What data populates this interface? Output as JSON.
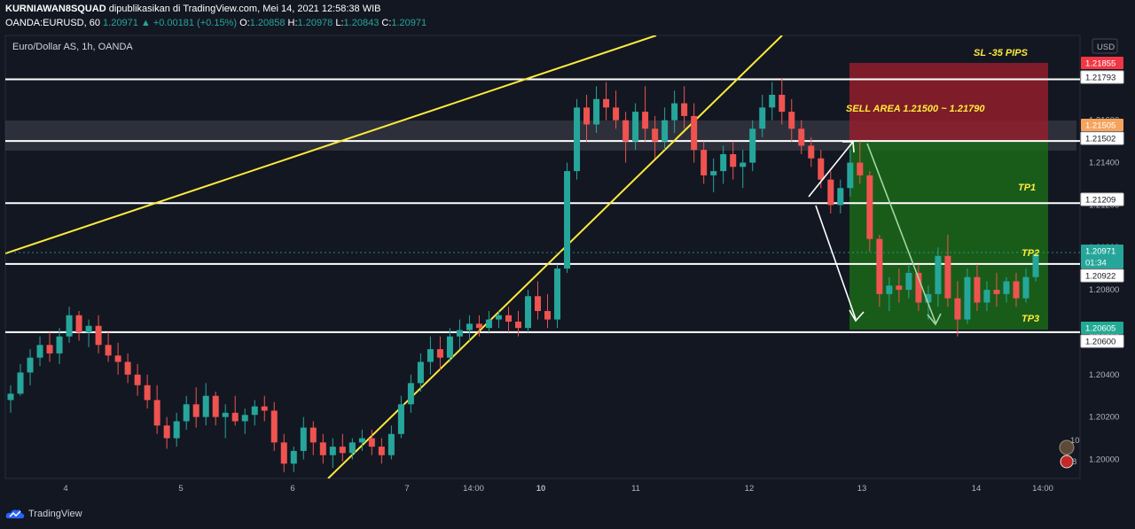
{
  "header": {
    "user": "KURNIAWAN8SQUAD",
    "published": "dipublikasikan di TradingView.com, Mei 14, 2021 12:58:38 WIB",
    "symbol": "OANDA:EURUSD, 60",
    "price": "1.20971",
    "change": "▲ +0.00181 (+0.15%)",
    "o_label": "O:",
    "o": "1.20858",
    "h_label": "H:",
    "h": "1.20978",
    "l_label": "L:",
    "l": "1.20843",
    "c_label": "C:",
    "c": "1.20971"
  },
  "footer": {
    "brand": "TradingView"
  },
  "chart_data": {
    "type": "candlestick",
    "title": "Euro/Dollar AS, 1h, OANDA",
    "currency": "USD",
    "y_ticks": [
      "1.21600",
      "1.21400",
      "1.21200",
      "1.21000",
      "1.20800",
      "1.20600",
      "1.20400",
      "1.20200",
      "1.20000"
    ],
    "y_range": [
      1.1991,
      1.22
    ],
    "x_ticks": [
      "4",
      "5",
      "6",
      "7",
      "14:00",
      "10",
      "11",
      "12",
      "13",
      "14",
      "14:00"
    ],
    "horizontal_levels": [
      1.21793,
      1.21502,
      1.21209,
      1.20922,
      1.206
    ],
    "price_tags": [
      {
        "text": "1.21855",
        "color": "#f23645"
      },
      {
        "text": "1.21793",
        "color": "#ffffff"
      },
      {
        "text": "1.21505",
        "color": "#f7a35c"
      },
      {
        "text": "1.21502",
        "color": "#ffffff"
      },
      {
        "text": "1.21209",
        "color": "#ffffff"
      },
      {
        "text": "1.20971",
        "color": "#26a69a"
      },
      {
        "text": "01:34",
        "color": "#26a69a"
      },
      {
        "text": "1.20922",
        "color": "#ffffff"
      },
      {
        "text": "1.20605",
        "color": "#22ab94"
      },
      {
        "text": "1.20600",
        "color": "#ffffff"
      }
    ],
    "annotations": [
      "SL -35 PIPS",
      "SELL AREA 1.21500 ~ 1.21790",
      "TP1",
      "TP2",
      "TP3"
    ],
    "zones": {
      "stop_loss": [
        1.215,
        1.21855
      ],
      "take_profit": [
        1.20605,
        1.215
      ],
      "sell_band": [
        1.2145,
        1.2164
      ]
    },
    "candles": [
      [
        1.2028,
        1.2035,
        1.2022,
        1.2031
      ],
      [
        1.2031,
        1.2045,
        1.203,
        1.2041
      ],
      [
        1.2041,
        1.2052,
        1.2035,
        1.2048
      ],
      [
        1.2048,
        1.2058,
        1.2044,
        1.2054
      ],
      [
        1.2054,
        1.206,
        1.2046,
        1.205
      ],
      [
        1.205,
        1.2062,
        1.2045,
        1.2058
      ],
      [
        1.2058,
        1.2072,
        1.2055,
        1.2068
      ],
      [
        1.2068,
        1.207,
        1.2056,
        1.206
      ],
      [
        1.206,
        1.2066,
        1.2053,
        1.2063
      ],
      [
        1.2063,
        1.2068,
        1.205,
        1.2054
      ],
      [
        1.2054,
        1.206,
        1.2046,
        1.2049
      ],
      [
        1.2049,
        1.2055,
        1.204,
        1.2046
      ],
      [
        1.2046,
        1.205,
        1.2036,
        1.204
      ],
      [
        1.204,
        1.2045,
        1.203,
        1.2035
      ],
      [
        1.2035,
        1.204,
        1.2024,
        1.2028
      ],
      [
        1.2028,
        1.2035,
        1.2012,
        1.2016
      ],
      [
        1.2016,
        1.202,
        1.2005,
        1.201
      ],
      [
        1.201,
        1.2022,
        1.2006,
        1.2018
      ],
      [
        1.2018,
        1.203,
        1.2014,
        1.2026
      ],
      [
        1.2026,
        1.2034,
        1.2015,
        1.202
      ],
      [
        1.202,
        1.2036,
        1.2016,
        1.203
      ],
      [
        1.203,
        1.2032,
        1.2016,
        1.202
      ],
      [
        1.202,
        1.2026,
        1.201,
        1.2022
      ],
      [
        1.2022,
        1.203,
        1.2016,
        1.2018
      ],
      [
        1.2018,
        1.2024,
        1.2012,
        1.2021
      ],
      [
        1.2021,
        1.2028,
        1.2016,
        1.2025
      ],
      [
        1.2025,
        1.203,
        1.2018,
        1.2023
      ],
      [
        1.2023,
        1.2027,
        1.2004,
        1.2008
      ],
      [
        1.2008,
        1.2012,
        1.1994,
        1.1998
      ],
      [
        1.1998,
        1.2006,
        1.1994,
        1.2004
      ],
      [
        1.2004,
        1.202,
        1.2,
        1.2015
      ],
      [
        1.2015,
        1.2018,
        1.2002,
        1.2008
      ],
      [
        1.2008,
        1.2012,
        1.1998,
        1.2002
      ],
      [
        1.2002,
        1.201,
        1.1996,
        1.2006
      ],
      [
        1.2006,
        1.2012,
        1.1999,
        1.2003
      ],
      [
        1.2003,
        1.201,
        1.2,
        1.2008
      ],
      [
        1.2008,
        1.2014,
        1.2004,
        1.201
      ],
      [
        1.201,
        1.2014,
        1.2002,
        1.2006
      ],
      [
        1.2006,
        1.201,
        1.1998,
        1.2002
      ],
      [
        1.2002,
        1.2016,
        1.2,
        1.2012
      ],
      [
        1.2012,
        1.203,
        1.201,
        1.2026
      ],
      [
        1.2026,
        1.204,
        1.2022,
        1.2036
      ],
      [
        1.2036,
        1.205,
        1.2032,
        1.2046
      ],
      [
        1.2046,
        1.2058,
        1.204,
        1.2052
      ],
      [
        1.2052,
        1.2058,
        1.2042,
        1.2048
      ],
      [
        1.2048,
        1.2062,
        1.2046,
        1.2058
      ],
      [
        1.2058,
        1.2066,
        1.2052,
        1.2061
      ],
      [
        1.2061,
        1.2068,
        1.2056,
        1.2064
      ],
      [
        1.2064,
        1.2068,
        1.2058,
        1.2062
      ],
      [
        1.2062,
        1.207,
        1.206,
        1.2066
      ],
      [
        1.2066,
        1.207,
        1.2062,
        1.2068
      ],
      [
        1.2068,
        1.2072,
        1.206,
        1.2065
      ],
      [
        1.2065,
        1.207,
        1.2058,
        1.2062
      ],
      [
        1.2062,
        1.208,
        1.206,
        1.2077
      ],
      [
        1.2077,
        1.2084,
        1.2066,
        1.207
      ],
      [
        1.207,
        1.2078,
        1.2062,
        1.2066
      ],
      [
        1.2066,
        1.2092,
        1.2062,
        1.209
      ],
      [
        1.209,
        1.214,
        1.2088,
        1.2136
      ],
      [
        1.2136,
        1.217,
        1.2132,
        1.2166
      ],
      [
        1.2166,
        1.2172,
        1.215,
        1.2158
      ],
      [
        1.2158,
        1.2176,
        1.2154,
        1.217
      ],
      [
        1.217,
        1.2178,
        1.216,
        1.2166
      ],
      [
        1.2166,
        1.2174,
        1.2156,
        1.216
      ],
      [
        1.216,
        1.2164,
        1.214,
        1.215
      ],
      [
        1.215,
        1.2168,
        1.2146,
        1.2164
      ],
      [
        1.2164,
        1.2176,
        1.215,
        1.2156
      ],
      [
        1.2156,
        1.2162,
        1.2142,
        1.215
      ],
      [
        1.215,
        1.2166,
        1.2146,
        1.216
      ],
      [
        1.216,
        1.2174,
        1.2154,
        1.2168
      ],
      [
        1.2168,
        1.2176,
        1.2156,
        1.2162
      ],
      [
        1.2162,
        1.2168,
        1.214,
        1.2146
      ],
      [
        1.2146,
        1.215,
        1.213,
        1.2134
      ],
      [
        1.2134,
        1.2142,
        1.2126,
        1.2136
      ],
      [
        1.2136,
        1.2148,
        1.213,
        1.2144
      ],
      [
        1.2144,
        1.215,
        1.2132,
        1.2138
      ],
      [
        1.2138,
        1.2146,
        1.2128,
        1.214
      ],
      [
        1.214,
        1.216,
        1.2136,
        1.2156
      ],
      [
        1.2156,
        1.2172,
        1.2152,
        1.2166
      ],
      [
        1.2166,
        1.2178,
        1.216,
        1.2172
      ],
      [
        1.2172,
        1.218,
        1.2158,
        1.2164
      ],
      [
        1.2164,
        1.217,
        1.215,
        1.2156
      ],
      [
        1.2156,
        1.216,
        1.2144,
        1.2148
      ],
      [
        1.2148,
        1.2152,
        1.2138,
        1.2142
      ],
      [
        1.2142,
        1.2146,
        1.2128,
        1.2132
      ],
      [
        1.2132,
        1.2136,
        1.2116,
        1.212
      ],
      [
        1.212,
        1.2132,
        1.2116,
        1.2128
      ],
      [
        1.2128,
        1.2146,
        1.2124,
        1.214
      ],
      [
        1.214,
        1.215,
        1.213,
        1.2134
      ],
      [
        1.2134,
        1.2136,
        1.2098,
        1.2104
      ],
      [
        1.2104,
        1.2106,
        1.2072,
        1.2078
      ],
      [
        1.2078,
        1.2086,
        1.207,
        1.2082
      ],
      [
        1.2082,
        1.209,
        1.2074,
        1.208
      ],
      [
        1.208,
        1.2092,
        1.2076,
        1.2088
      ],
      [
        1.2088,
        1.2092,
        1.207,
        1.2074
      ],
      [
        1.2074,
        1.2082,
        1.2066,
        1.2078
      ],
      [
        1.2078,
        1.21,
        1.2072,
        1.2096
      ],
      [
        1.2096,
        1.2106,
        1.2072,
        1.2076
      ],
      [
        1.2076,
        1.2084,
        1.2058,
        1.2066
      ],
      [
        1.2066,
        1.209,
        1.2064,
        1.2086
      ],
      [
        1.2086,
        1.2092,
        1.207,
        1.2074
      ],
      [
        1.2074,
        1.2084,
        1.207,
        1.208
      ],
      [
        1.208,
        1.2088,
        1.2072,
        1.2078
      ],
      [
        1.2078,
        1.2086,
        1.2074,
        1.2084
      ],
      [
        1.2084,
        1.2088,
        1.2072,
        1.2076
      ],
      [
        1.2076,
        1.209,
        1.2074,
        1.2086
      ],
      [
        1.2086,
        1.2098,
        1.2084,
        1.2097
      ]
    ]
  }
}
